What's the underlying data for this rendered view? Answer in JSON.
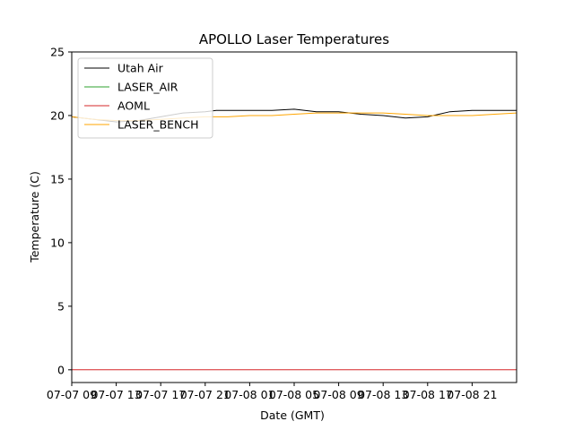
{
  "chart_data": {
    "type": "line",
    "title": "APOLLO Laser Temperatures",
    "xlabel": "Date (GMT)",
    "ylabel": "Temperature (C)",
    "ylim": [
      -1,
      25
    ],
    "xlim": [
      0,
      40
    ],
    "yticks": [
      0,
      5,
      10,
      15,
      20,
      25
    ],
    "xtick_hours": [
      0,
      4,
      8,
      12,
      16,
      20,
      24,
      28,
      32,
      36
    ],
    "xtick_labels": [
      "07-07 09",
      "07-07 13",
      "07-07 17",
      "07-07 21",
      "07-08 01",
      "07-08 05",
      "07-08 09",
      "07-08 13",
      "07-08 17",
      "07-08 21"
    ],
    "legend_position": "top-left",
    "series": [
      {
        "name": "Utah Air",
        "color": "#000000",
        "x": [
          0,
          2,
          4,
          6,
          8,
          10,
          12,
          13,
          14,
          16,
          18,
          20,
          22,
          24,
          26,
          28,
          30,
          32,
          34,
          36,
          38,
          40
        ],
        "y": [
          19.9,
          19.7,
          19.5,
          19.6,
          19.9,
          20.2,
          20.3,
          20.4,
          20.4,
          20.4,
          20.4,
          20.5,
          20.3,
          20.3,
          20.1,
          20.0,
          19.8,
          19.9,
          20.3,
          20.4,
          20.4,
          20.4
        ]
      },
      {
        "name": "LASER_AIR",
        "color": "#2ca02c",
        "x": [],
        "y": []
      },
      {
        "name": "AOML",
        "color": "#d62728",
        "x": [
          0,
          40
        ],
        "y": [
          0,
          0
        ]
      },
      {
        "name": "LASER_BENCH",
        "color": "#ffa500",
        "x": [
          0,
          2,
          4,
          6,
          8,
          10,
          12,
          14,
          16,
          18,
          20,
          22,
          24,
          26,
          28,
          30,
          32,
          34,
          36,
          38,
          40
        ],
        "y": [
          19.9,
          19.7,
          19.6,
          19.6,
          19.7,
          19.8,
          19.9,
          19.9,
          20.0,
          20.0,
          20.1,
          20.2,
          20.2,
          20.2,
          20.2,
          20.1,
          20.0,
          20.0,
          20.0,
          20.1,
          20.2
        ]
      }
    ]
  }
}
